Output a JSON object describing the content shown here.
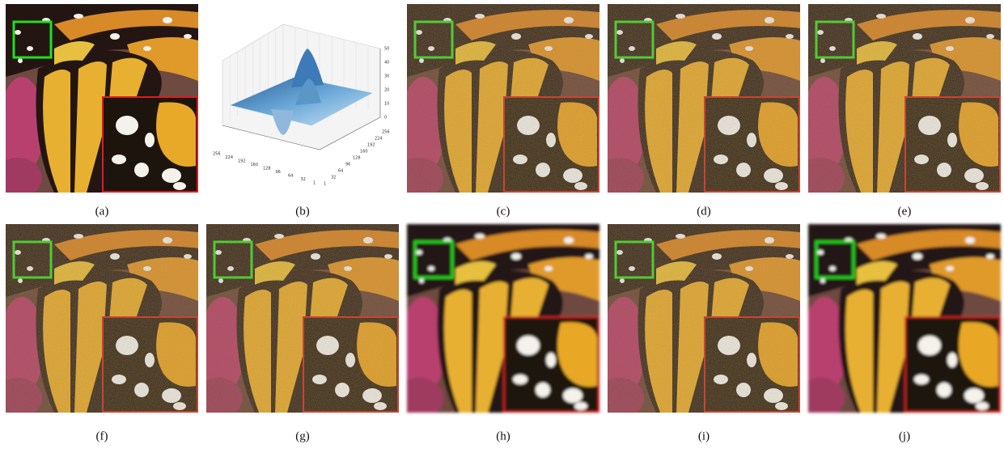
{
  "panels": [
    {
      "label": "(a)"
    },
    {
      "label": "(b)"
    },
    {
      "label": "(c)"
    },
    {
      "label": "(d)"
    },
    {
      "label": "(e)"
    },
    {
      "label": "(f)"
    },
    {
      "label": "(g)"
    },
    {
      "label": "(h)"
    },
    {
      "label": "(i)"
    },
    {
      "label": "(j)"
    }
  ],
  "plot": {
    "z_ticks": [
      "50",
      "40",
      "30",
      "20",
      "10",
      "0"
    ],
    "x_ticks": [
      "256",
      "224",
      "192",
      "160",
      "128",
      "96",
      "64",
      "32",
      "1"
    ],
    "y_ticks": [
      "1",
      "32",
      "64",
      "96",
      "128",
      "160",
      "192",
      "224",
      "256"
    ]
  }
}
